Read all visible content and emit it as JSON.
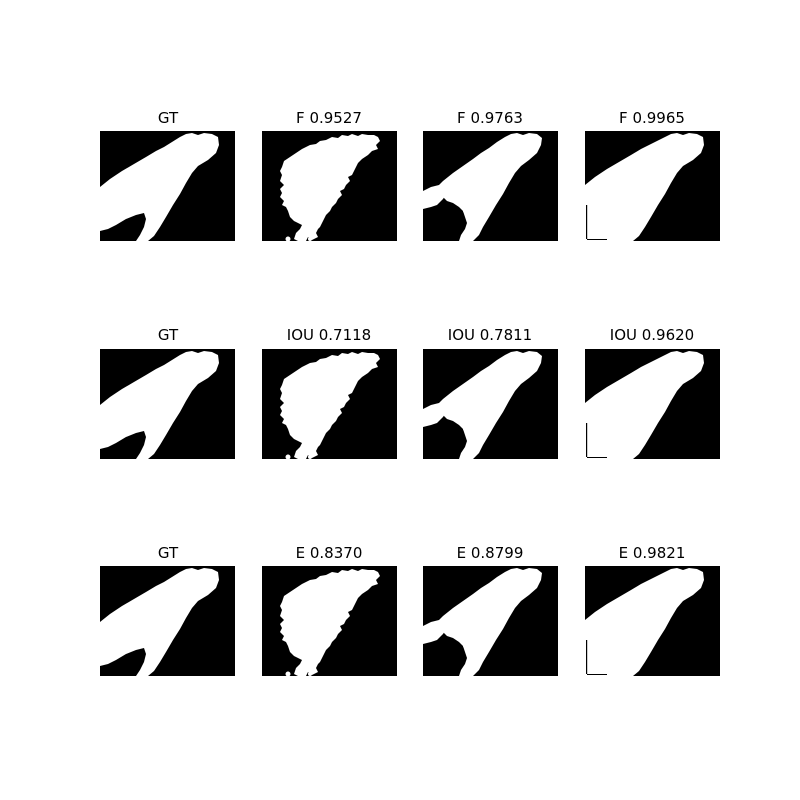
{
  "colors": {
    "background": "#ffffff",
    "mask_background": "#000000",
    "mask_foreground": "#ffffff",
    "title_text": "#000000"
  },
  "grid": {
    "rows": [
      {
        "panels": [
          {
            "title": "GT",
            "mask": "ground-truth"
          },
          {
            "title": "F 0.9527",
            "mask": "prediction-rough"
          },
          {
            "title": "F 0.9763",
            "mask": "prediction-with-blobs"
          },
          {
            "title": "F 0.9965",
            "mask": "prediction-near-exact"
          }
        ]
      },
      {
        "panels": [
          {
            "title": "GT",
            "mask": "ground-truth"
          },
          {
            "title": "IOU 0.7118",
            "mask": "prediction-rough"
          },
          {
            "title": "IOU 0.7811",
            "mask": "prediction-with-blobs"
          },
          {
            "title": "IOU 0.9620",
            "mask": "prediction-near-exact"
          }
        ]
      },
      {
        "panels": [
          {
            "title": "GT",
            "mask": "ground-truth"
          },
          {
            "title": "E 0.8370",
            "mask": "prediction-rough"
          },
          {
            "title": "E 0.8799",
            "mask": "prediction-with-blobs"
          },
          {
            "title": "E 0.9821",
            "mask": "prediction-near-exact"
          }
        ]
      }
    ]
  }
}
